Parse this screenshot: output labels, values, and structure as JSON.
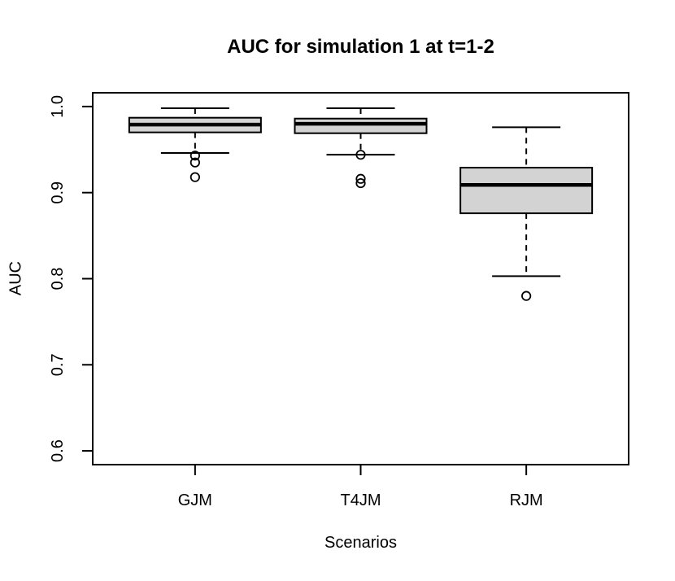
{
  "title": "AUC for simulation 1 at t=1-2",
  "chart_data": {
    "type": "boxplot",
    "title": "AUC for simulation 1 at t=1-2",
    "xlabel": "Scenarios",
    "ylabel": "AUC",
    "categories": [
      "GJM",
      "T4JM",
      "RJM"
    ],
    "y_ticks": [
      1.0,
      0.9,
      0.8,
      0.7,
      0.6
    ],
    "y_tick_labels": [
      "1.0",
      "0.9",
      "0.8",
      "0.7",
      "0.6"
    ],
    "ylim": [
      0.584,
      1.016
    ],
    "grid": false,
    "legend": "none",
    "background": "#ffffff",
    "box_fill": "#d3d3d3",
    "line_color": "#000000",
    "series": [
      {
        "name": "GJM",
        "lower_whisker": 0.946,
        "q1": 0.97,
        "median": 0.979,
        "q3": 0.987,
        "upper_whisker": 0.998,
        "outliers": [
          0.943,
          0.935,
          0.918
        ]
      },
      {
        "name": "T4JM",
        "lower_whisker": 0.944,
        "q1": 0.969,
        "median": 0.98,
        "q3": 0.986,
        "upper_whisker": 0.998,
        "outliers": [
          0.944,
          0.916,
          0.911
        ]
      },
      {
        "name": "RJM",
        "lower_whisker": 0.803,
        "q1": 0.876,
        "median": 0.909,
        "q3": 0.929,
        "upper_whisker": 0.976,
        "outliers": [
          0.78
        ]
      }
    ]
  }
}
